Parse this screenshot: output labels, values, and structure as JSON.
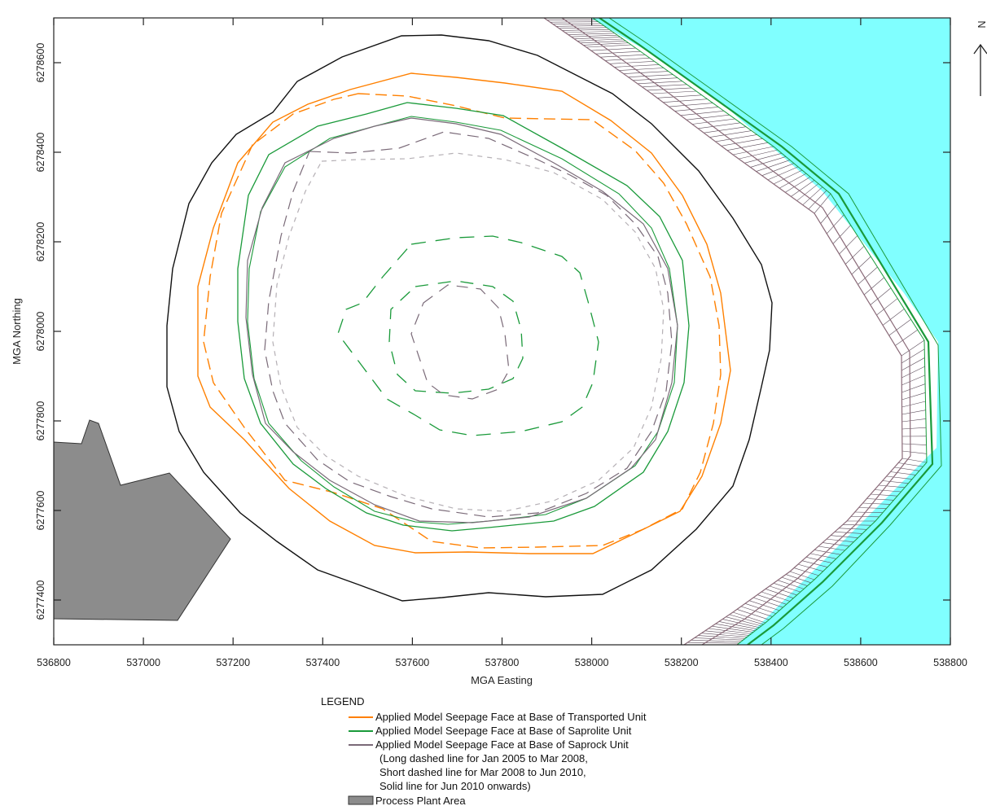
{
  "map": {
    "x_axis": {
      "title": "MGA Easting",
      "min": 536800,
      "max": 538800,
      "ticks": [
        "536800",
        "537000",
        "537200",
        "537400",
        "537600",
        "537800",
        "538000",
        "538200",
        "538400",
        "538600",
        "538800"
      ]
    },
    "y_axis": {
      "title": "MGA Northing",
      "min": 6277300,
      "max": 6278700,
      "ticks": [
        "6277400",
        "6277600",
        "6277800",
        "6278000",
        "6278200",
        "6278400",
        "6278600"
      ]
    },
    "north_arrow": "N",
    "colors": {
      "water": "#80ffff",
      "plant": "#8c8c8c",
      "transported": "#ff8000",
      "saprolite": "#1a9a3a",
      "saprock": "#7a6a78",
      "outer_contour": "#111111"
    }
  },
  "legend": {
    "title": "LEGEND",
    "items": [
      {
        "label": "Applied Model Seepage Face at Base of Transported Unit",
        "color": "#ff8000",
        "kind": "line"
      },
      {
        "label": "Applied Model Seepage Face at Base of Saprolite Unit",
        "color": "#1a9a3a",
        "kind": "line"
      },
      {
        "label": "Applied Model Seepage Face at Base of Saprock Unit",
        "color": "#7a6a78",
        "kind": "line"
      }
    ],
    "notes": [
      "(Long dashed line for Jan 2005 to Mar 2008,",
      "Short dashed line for Mar 2008 to Jun 2010,",
      "Solid line for Jun 2010 onwards)"
    ],
    "plant_label": "Process Plant Area"
  }
}
